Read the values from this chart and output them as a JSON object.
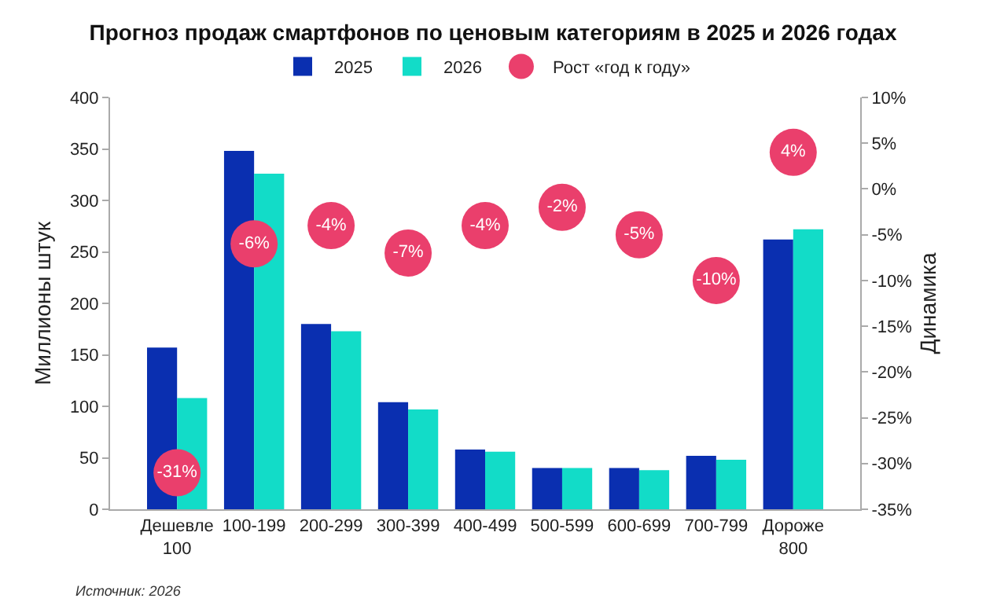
{
  "chart_data": {
    "type": "bar",
    "title": "Прогноз продаж смартфонов по ценовым категориям в 2025 и 2026 годах",
    "ylabel": "Миллионы штук",
    "y2label": "Динамика",
    "categories": [
      "Дешевле 100",
      "100-199",
      "200-299",
      "300-399",
      "400-499",
      "500-599",
      "600-699",
      "700-799",
      "Дороже 800"
    ],
    "series": [
      {
        "name": "2025",
        "color": "#0a2fb0",
        "values": [
          157,
          348,
          180,
          104,
          58,
          40,
          40,
          52,
          262
        ]
      },
      {
        "name": "2026",
        "color": "#12dcc8",
        "values": [
          108,
          326,
          173,
          97,
          56,
          40,
          38,
          48,
          272
        ]
      },
      {
        "name": "Рост «год к году»",
        "type": "scatter",
        "axis": "y2",
        "marker": "circle",
        "color": "#ea3f6c",
        "values": [
          -31,
          -6,
          -4,
          -7,
          -4,
          -2,
          -5,
          -10,
          4
        ],
        "value_labels": [
          "-31%",
          "-6%",
          "-4%",
          "-7%",
          "-4%",
          "-2%",
          "-5%",
          "-10%",
          "4%"
        ]
      }
    ],
    "ylim": [
      0,
      400
    ],
    "yticks": [
      0,
      50,
      100,
      150,
      200,
      250,
      300,
      350,
      400
    ],
    "y2lim": [
      -35,
      10
    ],
    "y2ticks": [
      {
        "value": -35,
        "label": "-35%"
      },
      {
        "value": -30,
        "label": "-30%"
      },
      {
        "value": -25,
        "label": "-25%"
      },
      {
        "value": -20,
        "label": "-20%"
      },
      {
        "value": -15,
        "label": "-15%"
      },
      {
        "value": -10,
        "label": "-10%"
      },
      {
        "value": -5,
        "label": "-5%"
      },
      {
        "value": 0,
        "label": "0%"
      },
      {
        "value": 5,
        "label": "5%"
      },
      {
        "value": 10,
        "label": "10%"
      }
    ],
    "grid": false,
    "legend": "top",
    "annotations": [
      "Источник: 2026"
    ]
  }
}
